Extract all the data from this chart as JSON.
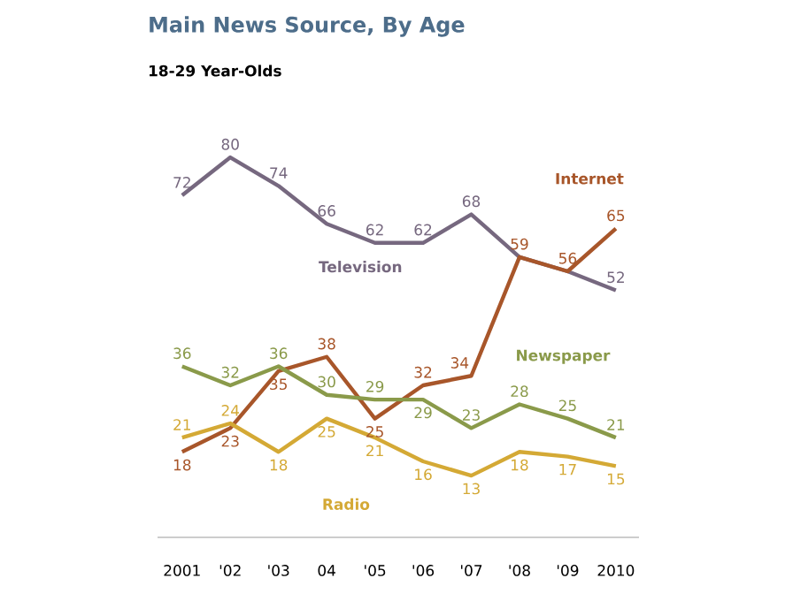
{
  "chart_data": {
    "type": "line",
    "title": "Main News Source, By Age",
    "subtitle": "18-29 Year-Olds",
    "categories": [
      "2001",
      "'02",
      "'03",
      "04",
      "'05",
      "'06",
      "'07",
      "'08",
      "'09",
      "2010"
    ],
    "series": [
      {
        "name": "Television",
        "color": "#76687f",
        "values": [
          72,
          80,
          74,
          66,
          62,
          62,
          68,
          59,
          56,
          52
        ],
        "value_labels": [
          "72",
          "80",
          "74",
          "66",
          "62",
          "62",
          "68",
          null,
          null,
          "52"
        ]
      },
      {
        "name": "Internet",
        "color": "#a8562a",
        "values": [
          18,
          23,
          35,
          38,
          25,
          32,
          34,
          59,
          56,
          65
        ],
        "value_labels": [
          "18",
          "23",
          "35",
          "38",
          "25",
          "32",
          "34",
          "59",
          "56",
          "65"
        ]
      },
      {
        "name": "Newspaper",
        "color": "#8a9a4a",
        "values": [
          36,
          32,
          36,
          30,
          29,
          29,
          23,
          28,
          25,
          21
        ],
        "value_labels": [
          "36",
          "32",
          "36",
          "30",
          "29",
          "29",
          "23",
          "28",
          "25",
          "21"
        ]
      },
      {
        "name": "Radio",
        "color": "#d4a935",
        "values": [
          21,
          24,
          18,
          25,
          21,
          16,
          13,
          18,
          17,
          15
        ],
        "value_labels": [
          "21",
          "24",
          "18",
          "25",
          "21",
          "16",
          "13",
          "18",
          "17",
          "15"
        ]
      }
    ],
    "tick_labels": "x",
    "grid": false,
    "marker": "none",
    "line_style": "solid"
  }
}
